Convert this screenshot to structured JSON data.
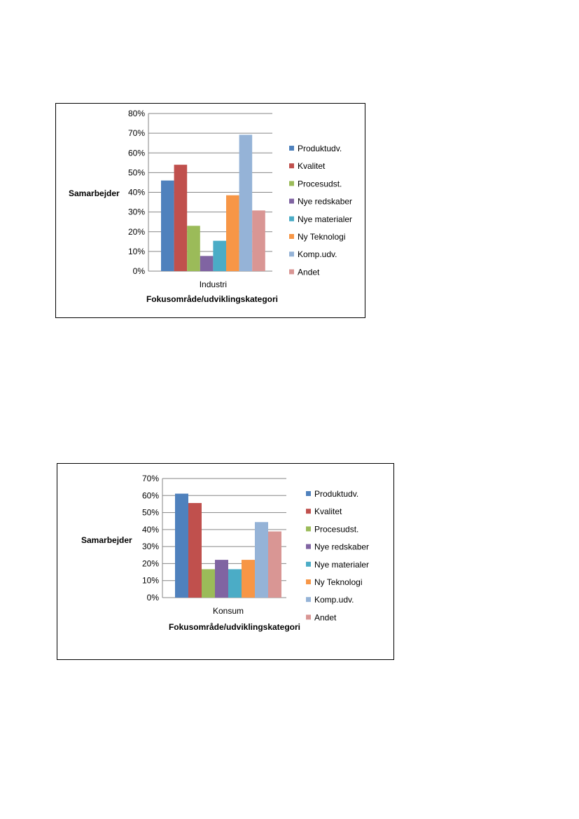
{
  "chart_data": [
    {
      "type": "bar",
      "categories": [
        "Industri"
      ],
      "series": [
        {
          "name": "Produktudv.",
          "color": "#4F81BD",
          "values": [
            46
          ]
        },
        {
          "name": "Kvalitet",
          "color": "#C0504D",
          "values": [
            54
          ]
        },
        {
          "name": "Procesudst.",
          "color": "#9BBB59",
          "values": [
            23
          ]
        },
        {
          "name": "Nye redskaber",
          "color": "#8064A2",
          "values": [
            7.7
          ]
        },
        {
          "name": "Nye materialer",
          "color": "#4BACC6",
          "values": [
            15.4
          ]
        },
        {
          "name": "Ny Teknologi",
          "color": "#F79646",
          "values": [
            38.5
          ]
        },
        {
          "name": "Komp.udv.",
          "color": "#95B3D7",
          "values": [
            69.2
          ]
        },
        {
          "name": "Andet",
          "color": "#D99694",
          "values": [
            30.8
          ]
        }
      ],
      "yticks": [
        "0%",
        "10%",
        "20%",
        "30%",
        "40%",
        "50%",
        "60%",
        "70%",
        "80%"
      ],
      "ylim": [
        0,
        80
      ],
      "xlabel": "Fokusområde/udviklingskategori",
      "ylabel": "Samarbejder",
      "grid": true,
      "legend_position": "right"
    },
    {
      "type": "bar",
      "categories": [
        "Konsum"
      ],
      "series": [
        {
          "name": "Produktudv.",
          "color": "#4F81BD",
          "values": [
            61.1
          ]
        },
        {
          "name": "Kvalitet",
          "color": "#C0504D",
          "values": [
            55.6
          ]
        },
        {
          "name": "Procesudst.",
          "color": "#9BBB59",
          "values": [
            16.7
          ]
        },
        {
          "name": "Nye redskaber",
          "color": "#8064A2",
          "values": [
            22.2
          ]
        },
        {
          "name": "Nye materialer",
          "color": "#4BACC6",
          "values": [
            16.7
          ]
        },
        {
          "name": "Ny Teknologi",
          "color": "#F79646",
          "values": [
            22.2
          ]
        },
        {
          "name": "Komp.udv.",
          "color": "#95B3D7",
          "values": [
            44.4
          ]
        },
        {
          "name": "Andet",
          "color": "#D99694",
          "values": [
            38.9
          ]
        }
      ],
      "yticks": [
        "0%",
        "10%",
        "20%",
        "30%",
        "40%",
        "50%",
        "60%",
        "70%"
      ],
      "ylim": [
        0,
        70
      ],
      "xlabel": "Fokusområde/udviklingskategori",
      "ylabel": "Samarbejder",
      "grid": true,
      "legend_position": "right"
    }
  ]
}
